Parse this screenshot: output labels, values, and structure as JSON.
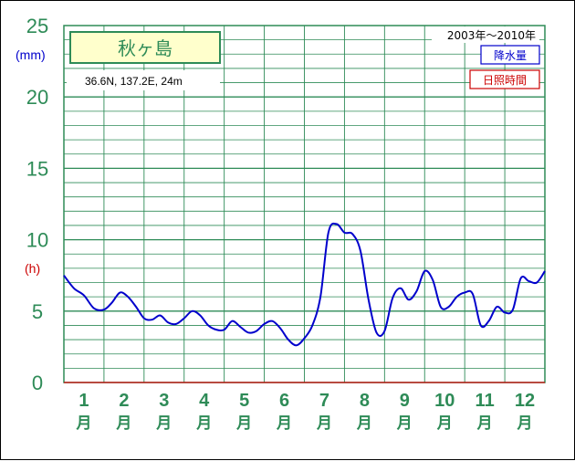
{
  "chart_data": {
    "type": "line",
    "title": "秋ヶ島",
    "location": "36.6N,  137.2E,  24m",
    "period": "2003年〜2010年",
    "y_unit_precip": "(mm)",
    "y_unit_sun": "(h)",
    "ylim": [
      0,
      25
    ],
    "yticks": [
      "0",
      "5",
      "10",
      "15",
      "20",
      "25"
    ],
    "month_numbers": [
      "1",
      "2",
      "3",
      "4",
      "5",
      "6",
      "7",
      "8",
      "9",
      "10",
      "11",
      "12"
    ],
    "month_suffix": "月",
    "legend": [
      {
        "label": "降水量",
        "color": "#0000cc"
      },
      {
        "label": "日照時間",
        "color": "#cc0000"
      }
    ],
    "grid": true,
    "series": [
      {
        "name": "降水量",
        "color": "#0000cc",
        "x": [
          0.0,
          0.25,
          0.5,
          0.75,
          1.0,
          1.2,
          1.4,
          1.6,
          1.8,
          2.0,
          2.2,
          2.4,
          2.6,
          2.8,
          3.0,
          3.2,
          3.4,
          3.6,
          3.8,
          4.0,
          4.2,
          4.4,
          4.6,
          4.8,
          5.0,
          5.2,
          5.4,
          5.6,
          5.8,
          6.0,
          6.2,
          6.4,
          6.6,
          6.8,
          7.0,
          7.2,
          7.4,
          7.6,
          7.8,
          8.0,
          8.2,
          8.4,
          8.6,
          8.8,
          9.0,
          9.2,
          9.4,
          9.6,
          9.8,
          10.0,
          10.2,
          10.4,
          10.6,
          10.8,
          11.0,
          11.2,
          11.4,
          11.6,
          11.8,
          12.0
        ],
        "values": [
          7.5,
          6.6,
          6.1,
          5.2,
          5.1,
          5.6,
          6.3,
          6.0,
          5.3,
          4.5,
          4.4,
          4.7,
          4.2,
          4.1,
          4.5,
          5.0,
          4.7,
          4.0,
          3.7,
          3.7,
          4.3,
          3.9,
          3.5,
          3.6,
          4.1,
          4.3,
          3.8,
          3.0,
          2.6,
          3.1,
          4.0,
          6.0,
          10.5,
          11.1,
          10.5,
          10.4,
          9.2,
          5.8,
          3.5,
          3.6,
          5.9,
          6.6,
          5.8,
          6.4,
          7.8,
          7.2,
          5.3,
          5.3,
          6.0,
          6.3,
          6.2,
          4.0,
          4.3,
          5.3,
          4.9,
          5.1,
          7.3,
          7.1,
          7.0,
          7.8
        ]
      }
    ]
  }
}
